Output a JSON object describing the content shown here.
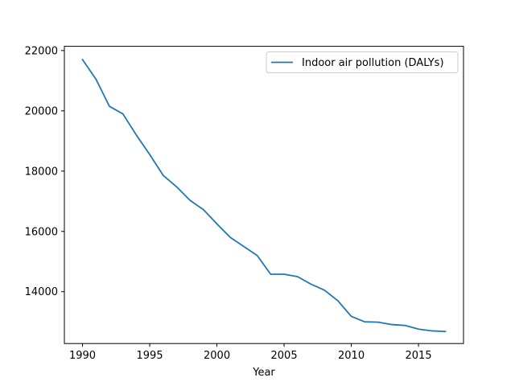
{
  "chart_data": {
    "type": "line",
    "title": "",
    "xlabel": "Year",
    "ylabel": "",
    "xlim": [
      1988.65,
      2018.35
    ],
    "ylim": [
      12280,
      22140
    ],
    "xticks": [
      1990,
      1995,
      2000,
      2005,
      2010,
      2015
    ],
    "yticks": [
      14000,
      16000,
      18000,
      20000,
      22000
    ],
    "grid": false,
    "legend_position": "upper right",
    "series": [
      {
        "name": "Indoor air pollution (DALYs)",
        "color": "#1f77b4",
        "x": [
          1990,
          1991,
          1992,
          1993,
          1994,
          1995,
          1996,
          1997,
          1998,
          1999,
          2000,
          2001,
          2002,
          2003,
          2004,
          2005,
          2006,
          2007,
          2008,
          2009,
          2010,
          2011,
          2012,
          2013,
          2014,
          2015,
          2016,
          2017
        ],
        "y": [
          21700,
          21050,
          20150,
          19900,
          19200,
          18550,
          17860,
          17480,
          17030,
          16720,
          16250,
          15800,
          15500,
          15200,
          14580,
          14580,
          14500,
          14250,
          14050,
          13700,
          13180,
          13000,
          12990,
          12910,
          12880,
          12760,
          12700,
          12680
        ]
      }
    ]
  }
}
